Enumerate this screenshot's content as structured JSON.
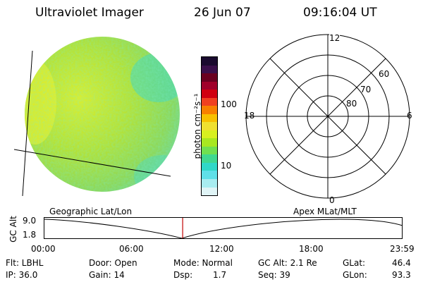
{
  "header": {
    "instrument": "Ultraviolet Imager",
    "date": "26 Jun 07",
    "time": "09:16:04 UT"
  },
  "colorbar": {
    "unit_label": "photon cm⁻²s⁻¹",
    "ticks": [
      "100",
      "10"
    ],
    "colors_top_to_bottom": [
      "#1a0a2e",
      "#3a0f4a",
      "#6a0020",
      "#a0002a",
      "#d00010",
      "#f04020",
      "#f88000",
      "#f8c000",
      "#f0e030",
      "#d8f020",
      "#a8e820",
      "#70e050",
      "#40d890",
      "#30d8c8",
      "#60e0e8",
      "#a8ecf0",
      "#e0f4f6"
    ]
  },
  "polar_grid": {
    "mlt_labels": {
      "top": "12",
      "left": "18",
      "right": "6",
      "bottom": "0"
    },
    "lat_labels": [
      "60",
      "70",
      "80"
    ]
  },
  "timeline": {
    "y_axis_label": "GC Alt",
    "y_max": "9.0",
    "y_min": "1.8",
    "left_title": "Geographic Lat/Lon",
    "right_title": "Apex MLat/MLT",
    "time_ticks": [
      "00:00",
      "06:00",
      "12:00",
      "18:00",
      "23:59"
    ],
    "current_time_fraction": 0.386
  },
  "info": {
    "flt": "Flt: LBHL",
    "ip": "IP: 36.0",
    "door": "Door: Open",
    "gain": "Gain: 14",
    "mode": "Mode: Normal",
    "dsp_label": "Dsp:",
    "dsp_value": "1.7",
    "gc_alt": "GC Alt: 2.1 Re",
    "seq": "Seq: 39",
    "glat_label": "GLat:",
    "glat_value": "46.4",
    "glon_label": "GLon:",
    "glon_value": "93.3"
  }
}
